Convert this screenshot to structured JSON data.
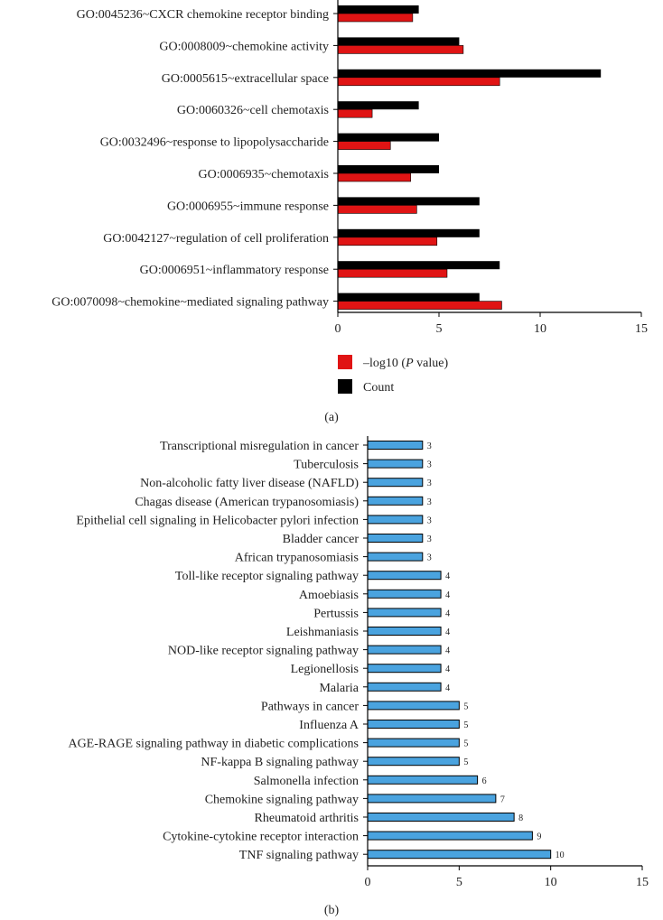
{
  "chart_data": [
    {
      "id": "a",
      "type": "bar",
      "orientation": "horizontal",
      "panel_label": "(a)",
      "categories": [
        "GO:0045236~CXCR chemokine receptor binding",
        "GO:0008009~chemokine activity",
        "GO:0005615~extracellular space",
        "GO:0060326~cell chemotaxis",
        "GO:0032496~response to lipopolysaccharide",
        "GO:0006935~chemotaxis",
        "GO:0006955~immune response",
        "GO:0042127~regulation of cell proliferation",
        "GO:0006951~inflammatory response",
        "GO:0070098~chemokine~mediated signaling pathway"
      ],
      "series": [
        {
          "name": "Count",
          "color": "#000000",
          "values": [
            4,
            6,
            13,
            4,
            5,
            5,
            7,
            7,
            8,
            7
          ]
        },
        {
          "name": "-log10 (P value)",
          "color": "#e01414",
          "values": [
            3.7,
            6.2,
            8.0,
            1.7,
            2.6,
            3.6,
            3.9,
            4.9,
            5.4,
            8.1
          ]
        }
      ],
      "xlim": [
        0,
        15
      ],
      "xticks": [
        "0",
        "5",
        "10",
        "15"
      ],
      "legend": [
        {
          "label_pre": "–log10 (",
          "label_italic": "P",
          "label_post": " value)",
          "color": "#e01414"
        },
        {
          "label": "Count",
          "color": "#000000"
        }
      ],
      "legend_position": "bottom-left"
    },
    {
      "id": "b",
      "type": "bar",
      "orientation": "horizontal",
      "panel_label": "(b)",
      "categories": [
        "Transcriptional misregulation in cancer",
        "Tuberculosis",
        "Non-alcoholic fatty liver disease (NAFLD)",
        "Chagas disease (American trypanosomiasis)",
        "Epithelial cell signaling in Helicobacter pylori infection",
        "Bladder cancer",
        "African trypanosomiasis",
        "Toll-like receptor signaling pathway",
        "Amoebiasis",
        "Pertussis",
        "Leishmaniasis",
        "NOD-like receptor signaling pathway",
        "Legionellosis",
        "Malaria",
        "Pathways in cancer",
        "Influenza A",
        "AGE-RAGE signaling pathway in diabetic complications",
        "NF-kappa B signaling pathway",
        "Salmonella infection",
        "Chemokine signaling pathway",
        "Rheumatoid arthritis",
        "Cytokine-cytokine receptor interaction",
        "TNF signaling pathway"
      ],
      "values": [
        3,
        3,
        3,
        3,
        3,
        3,
        3,
        4,
        4,
        4,
        4,
        4,
        4,
        4,
        5,
        5,
        5,
        5,
        6,
        7,
        8,
        9,
        10
      ],
      "data_labels": [
        "3",
        "3",
        "3",
        "3",
        "3",
        "3",
        "3",
        "4",
        "4",
        "4",
        "4",
        "4",
        "4",
        "4",
        "5",
        "5",
        "5",
        "5",
        "6",
        "7",
        "8",
        "9",
        "10"
      ],
      "bar_color": "#4aa3df",
      "xlim": [
        0,
        15
      ],
      "xticks": [
        "0",
        "5",
        "10",
        "15"
      ]
    }
  ]
}
